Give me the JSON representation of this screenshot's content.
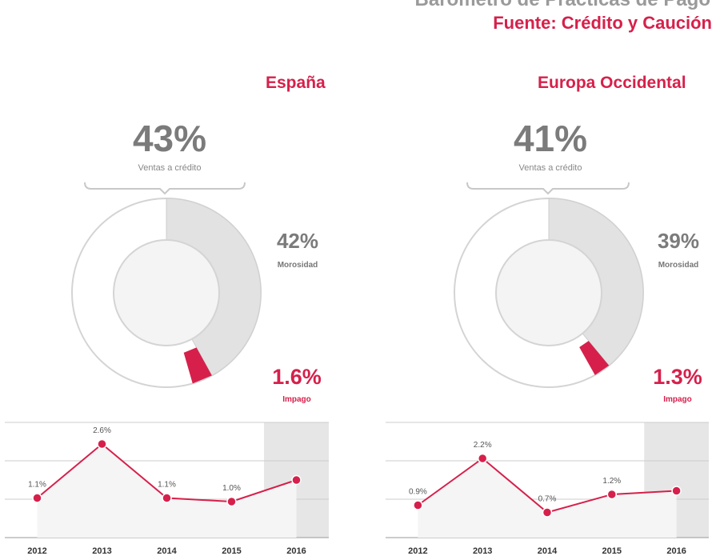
{
  "header": {
    "title": "Barómetro de Prácticas de Pago",
    "source": "Fuente: Crédito y Caución"
  },
  "colors": {
    "accent": "#d6204b",
    "grey_text": "#7b7b7b",
    "ring_fill": "#e2e2e2",
    "highlight_band": "#e6e6e6"
  },
  "chart_data": [
    {
      "type": "pie",
      "region": "España",
      "ventas_credito": {
        "value": 43,
        "text": "43%",
        "label": "Ventas a crédito"
      },
      "morosidad": {
        "value": 42,
        "text": "42%",
        "label": "Morosidad"
      },
      "impago": {
        "value": 1.6,
        "text": "1.6%",
        "label": "Impago"
      }
    },
    {
      "type": "line",
      "region": "España",
      "x": [
        "2012",
        "2013",
        "2014",
        "2015",
        "2016"
      ],
      "values": [
        1.1,
        2.6,
        1.1,
        1.0,
        1.6
      ],
      "labels": [
        "1.1%",
        "2.6%",
        "1.1%",
        "1.0%",
        ""
      ],
      "ylim": [
        0,
        3.2
      ],
      "highlight_category": "2016",
      "grid": true
    },
    {
      "type": "pie",
      "region": "Europa Occidental",
      "ventas_credito": {
        "value": 41,
        "text": "41%",
        "label": "Ventas a crédito"
      },
      "morosidad": {
        "value": 39,
        "text": "39%",
        "label": "Morosidad"
      },
      "impago": {
        "value": 1.3,
        "text": "1.3%",
        "label": "Impago"
      }
    },
    {
      "type": "line",
      "region": "Europa Occidental",
      "x": [
        "2012",
        "2013",
        "2014",
        "2015",
        "2016"
      ],
      "values": [
        0.9,
        2.2,
        0.7,
        1.2,
        1.3
      ],
      "labels": [
        "0.9%",
        "2.2%",
        "0.7%",
        "1.2%",
        ""
      ],
      "ylim": [
        0,
        3.2
      ],
      "highlight_category": "2016",
      "grid": true
    }
  ]
}
